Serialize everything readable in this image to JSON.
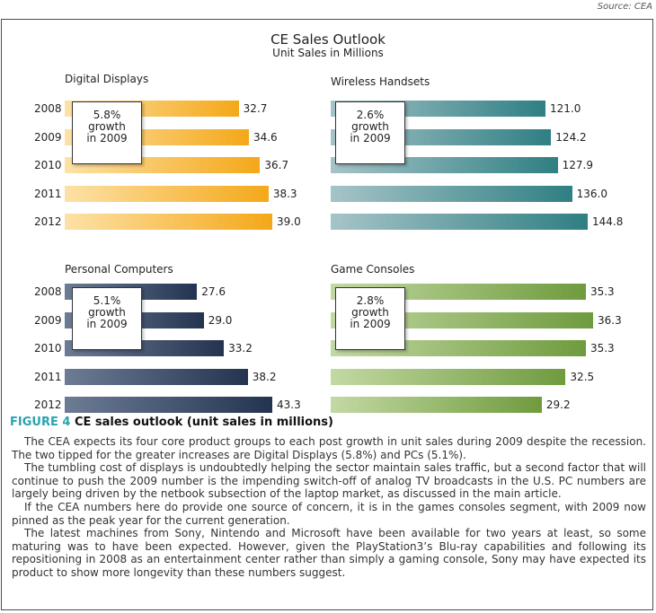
{
  "source": "Source: CEA",
  "chart_data": {
    "type": "bar",
    "orientation": "horizontal",
    "title": "CE Sales Outlook",
    "subtitle": "Unit Sales in Millions",
    "categories": [
      "2008",
      "2009",
      "2010",
      "2011",
      "2012"
    ],
    "scale_max": 150,
    "panels": [
      {
        "id": "digital-displays",
        "title": "Digital Displays",
        "values": [
          32.7,
          34.6,
          36.7,
          38.3,
          39.0
        ],
        "labels": [
          "32.7",
          "34.6",
          "36.7",
          "38.3",
          "39.0"
        ],
        "color_light": "#fde1a6",
        "color_dark": "#f4a819",
        "growth": {
          "pct": "5.8%",
          "line2": "growth",
          "line3": "in 2009"
        }
      },
      {
        "id": "wireless-handsets",
        "title": "Wireless Handsets",
        "values": [
          121.0,
          124.2,
          127.9,
          136.0,
          144.8
        ],
        "labels": [
          "121.0",
          "124.2",
          "127.9",
          "136.0",
          "144.8"
        ],
        "color_light": "#a6c4c8",
        "color_dark": "#2f7f83",
        "growth": {
          "pct": "2.6%",
          "line2": "growth",
          "line3": "in 2009"
        }
      },
      {
        "id": "personal-computers",
        "title": "Personal Computers",
        "values": [
          27.6,
          29.0,
          33.2,
          38.2,
          43.3
        ],
        "labels": [
          "27.6",
          "29.0",
          "33.2",
          "38.2",
          "43.3"
        ],
        "color_light": "#6d7c95",
        "color_dark": "#243450",
        "growth": {
          "pct": "5.1%",
          "line2": "growth",
          "line3": "in 2009"
        }
      },
      {
        "id": "game-consoles",
        "title": "Game Consoles",
        "values": [
          35.3,
          36.3,
          35.3,
          32.5,
          29.2
        ],
        "labels": [
          "35.3",
          "36.3",
          "35.3",
          "32.5",
          "29.2"
        ],
        "color_light": "#c3d9a3",
        "color_dark": "#6f9b3e",
        "growth": {
          "pct": "2.8%",
          "line2": "growth",
          "line3": "in 2009"
        }
      }
    ]
  },
  "caption": {
    "figure_number": "FIGURE 4",
    "text": "CE sales outlook (unit sales in millions)"
  },
  "paragraphs": [
    "The CEA expects its four core product groups to each post growth in unit sales during 2009 despite the recession. The two tipped for the greater increases are Digital Displays (5.8%) and PCs (5.1%).",
    "The tumbling cost of displays is undoubtedly helping the sector maintain sales traffic, but a second factor that will continue to push the 2009 number is the impending switch-off of analog TV broadcasts in the U.S. PC numbers are largely being driven by the netbook subsection of the laptop market, as discussed in the main article.",
    "If the CEA numbers here do provide one source of concern, it is in the games consoles segment, with 2009 now pinned as the peak year for the current generation.",
    "The latest machines from Sony, Nintendo and Microsoft have been available for two years at least, so some maturing was to have been expected. However, given the PlayStation3’s Blu-ray capabilities and following its repositioning in 2008 as an entertainment center rather than simply a gaming console, Sony may have expected its product to show more longevity than these numbers suggest."
  ]
}
